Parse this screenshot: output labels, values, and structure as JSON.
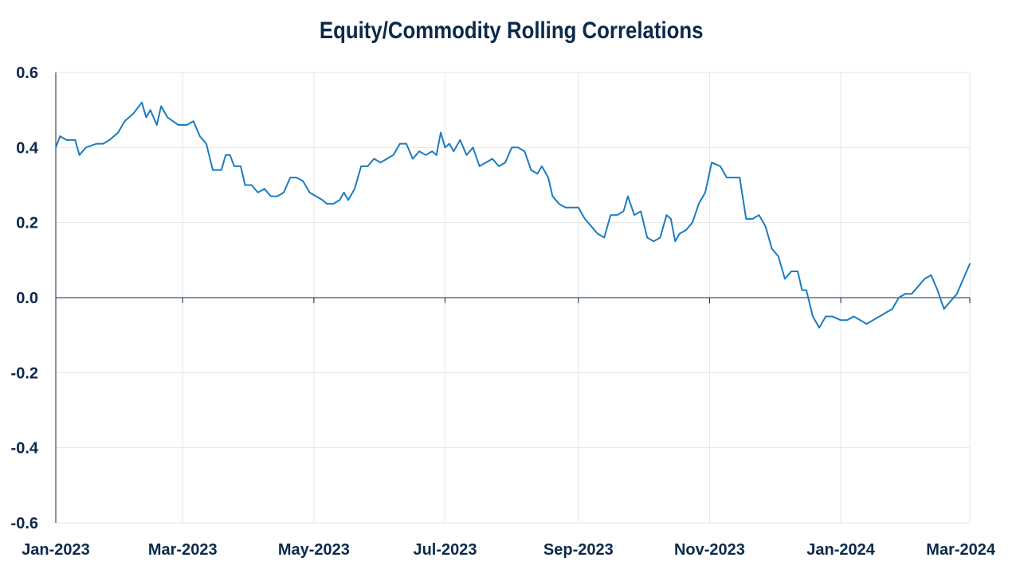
{
  "chart_data": {
    "type": "line",
    "title": "Equity/Commodity Rolling Correlations",
    "xlabel": "",
    "ylabel": "",
    "ylim": [
      -0.6,
      0.6
    ],
    "yticks": [
      0.6,
      0.4,
      0.2,
      0.0,
      -0.2,
      -0.4,
      -0.6
    ],
    "ytick_labels": [
      "0.6",
      "0.4",
      "0.2",
      "0.0",
      "-0.2",
      "-0.4",
      "-0.6"
    ],
    "xlim": [
      "2023-01-01",
      "2024-03-01"
    ],
    "xticks": [
      "2023-01-01",
      "2023-03-01",
      "2023-05-01",
      "2023-07-01",
      "2023-09-01",
      "2023-11-01",
      "2024-01-01",
      "2024-03-01"
    ],
    "xtick_labels": [
      "Jan-2023",
      "Mar-2023",
      "May-2023",
      "Jul-2023",
      "Sep-2023",
      "Nov-2023",
      "Jan-2024",
      "Mar-2024"
    ],
    "grid": true,
    "legend": "none",
    "series": [
      {
        "color": "#1a7cc1",
        "points": [
          [
            "2023-01-01",
            0.4
          ],
          [
            "2023-01-03",
            0.43
          ],
          [
            "2023-01-06",
            0.42
          ],
          [
            "2023-01-10",
            0.42
          ],
          [
            "2023-01-12",
            0.38
          ],
          [
            "2023-01-15",
            0.4
          ],
          [
            "2023-01-20",
            0.41
          ],
          [
            "2023-01-23",
            0.41
          ],
          [
            "2023-01-26",
            0.42
          ],
          [
            "2023-01-30",
            0.44
          ],
          [
            "2023-02-02",
            0.47
          ],
          [
            "2023-02-06",
            0.49
          ],
          [
            "2023-02-10",
            0.52
          ],
          [
            "2023-02-12",
            0.48
          ],
          [
            "2023-02-14",
            0.5
          ],
          [
            "2023-02-17",
            0.46
          ],
          [
            "2023-02-19",
            0.51
          ],
          [
            "2023-02-22",
            0.48
          ],
          [
            "2023-02-27",
            0.46
          ],
          [
            "2023-03-03",
            0.46
          ],
          [
            "2023-03-06",
            0.47
          ],
          [
            "2023-03-09",
            0.43
          ],
          [
            "2023-03-12",
            0.41
          ],
          [
            "2023-03-15",
            0.34
          ],
          [
            "2023-03-19",
            0.34
          ],
          [
            "2023-03-21",
            0.38
          ],
          [
            "2023-03-23",
            0.38
          ],
          [
            "2023-03-25",
            0.35
          ],
          [
            "2023-03-28",
            0.35
          ],
          [
            "2023-03-30",
            0.3
          ],
          [
            "2023-04-02",
            0.3
          ],
          [
            "2023-04-05",
            0.28
          ],
          [
            "2023-04-08",
            0.29
          ],
          [
            "2023-04-11",
            0.27
          ],
          [
            "2023-04-14",
            0.27
          ],
          [
            "2023-04-17",
            0.28
          ],
          [
            "2023-04-20",
            0.32
          ],
          [
            "2023-04-23",
            0.32
          ],
          [
            "2023-04-26",
            0.31
          ],
          [
            "2023-04-29",
            0.28
          ],
          [
            "2023-05-02",
            0.27
          ],
          [
            "2023-05-05",
            0.26
          ],
          [
            "2023-05-07",
            0.25
          ],
          [
            "2023-05-10",
            0.25
          ],
          [
            "2023-05-13",
            0.26
          ],
          [
            "2023-05-15",
            0.28
          ],
          [
            "2023-05-17",
            0.26
          ],
          [
            "2023-05-20",
            0.29
          ],
          [
            "2023-05-23",
            0.35
          ],
          [
            "2023-05-26",
            0.35
          ],
          [
            "2023-05-29",
            0.37
          ],
          [
            "2023-06-01",
            0.36
          ],
          [
            "2023-06-04",
            0.37
          ],
          [
            "2023-06-07",
            0.38
          ],
          [
            "2023-06-10",
            0.41
          ],
          [
            "2023-06-13",
            0.41
          ],
          [
            "2023-06-16",
            0.37
          ],
          [
            "2023-06-19",
            0.39
          ],
          [
            "2023-06-22",
            0.38
          ],
          [
            "2023-06-25",
            0.39
          ],
          [
            "2023-06-27",
            0.38
          ],
          [
            "2023-06-29",
            0.44
          ],
          [
            "2023-07-01",
            0.4
          ],
          [
            "2023-07-03",
            0.41
          ],
          [
            "2023-07-05",
            0.39
          ],
          [
            "2023-07-08",
            0.42
          ],
          [
            "2023-07-11",
            0.38
          ],
          [
            "2023-07-14",
            0.4
          ],
          [
            "2023-07-17",
            0.35
          ],
          [
            "2023-07-20",
            0.36
          ],
          [
            "2023-07-23",
            0.37
          ],
          [
            "2023-07-26",
            0.35
          ],
          [
            "2023-07-29",
            0.36
          ],
          [
            "2023-08-01",
            0.4
          ],
          [
            "2023-08-04",
            0.4
          ],
          [
            "2023-08-07",
            0.39
          ],
          [
            "2023-08-10",
            0.34
          ],
          [
            "2023-08-13",
            0.33
          ],
          [
            "2023-08-15",
            0.35
          ],
          [
            "2023-08-18",
            0.32
          ],
          [
            "2023-08-20",
            0.27
          ],
          [
            "2023-08-23",
            0.25
          ],
          [
            "2023-08-26",
            0.24
          ],
          [
            "2023-08-29",
            0.24
          ],
          [
            "2023-09-01",
            0.24
          ],
          [
            "2023-09-04",
            0.21
          ],
          [
            "2023-09-07",
            0.19
          ],
          [
            "2023-09-10",
            0.17
          ],
          [
            "2023-09-13",
            0.16
          ],
          [
            "2023-09-16",
            0.22
          ],
          [
            "2023-09-19",
            0.22
          ],
          [
            "2023-09-22",
            0.23
          ],
          [
            "2023-09-24",
            0.27
          ],
          [
            "2023-09-27",
            0.22
          ],
          [
            "2023-09-30",
            0.23
          ],
          [
            "2023-10-03",
            0.16
          ],
          [
            "2023-10-06",
            0.15
          ],
          [
            "2023-10-09",
            0.16
          ],
          [
            "2023-10-12",
            0.22
          ],
          [
            "2023-10-14",
            0.21
          ],
          [
            "2023-10-16",
            0.15
          ],
          [
            "2023-10-18",
            0.17
          ],
          [
            "2023-10-21",
            0.18
          ],
          [
            "2023-10-24",
            0.2
          ],
          [
            "2023-10-27",
            0.25
          ],
          [
            "2023-10-30",
            0.28
          ],
          [
            "2023-11-02",
            0.36
          ],
          [
            "2023-11-06",
            0.35
          ],
          [
            "2023-11-09",
            0.32
          ],
          [
            "2023-11-12",
            0.32
          ],
          [
            "2023-11-15",
            0.32
          ],
          [
            "2023-11-18",
            0.21
          ],
          [
            "2023-11-21",
            0.21
          ],
          [
            "2023-11-24",
            0.22
          ],
          [
            "2023-11-27",
            0.19
          ],
          [
            "2023-11-30",
            0.13
          ],
          [
            "2023-12-03",
            0.11
          ],
          [
            "2023-12-06",
            0.05
          ],
          [
            "2023-12-09",
            0.07
          ],
          [
            "2023-12-12",
            0.07
          ],
          [
            "2023-12-14",
            0.02
          ],
          [
            "2023-12-16",
            0.02
          ],
          [
            "2023-12-19",
            -0.05
          ],
          [
            "2023-12-22",
            -0.08
          ],
          [
            "2023-12-25",
            -0.05
          ],
          [
            "2023-12-28",
            -0.05
          ],
          [
            "2024-01-01",
            -0.06
          ],
          [
            "2024-01-04",
            -0.06
          ],
          [
            "2024-01-07",
            -0.05
          ],
          [
            "2024-01-10",
            -0.06
          ],
          [
            "2024-01-13",
            -0.07
          ],
          [
            "2024-01-16",
            -0.06
          ],
          [
            "2024-01-19",
            -0.05
          ],
          [
            "2024-01-22",
            -0.04
          ],
          [
            "2024-01-25",
            -0.03
          ],
          [
            "2024-01-28",
            0.0
          ],
          [
            "2024-01-31",
            0.01
          ],
          [
            "2024-02-03",
            0.01
          ],
          [
            "2024-02-06",
            0.03
          ],
          [
            "2024-02-09",
            0.05
          ],
          [
            "2024-02-12",
            0.06
          ],
          [
            "2024-02-15",
            0.02
          ],
          [
            "2024-02-18",
            -0.03
          ],
          [
            "2024-02-21",
            -0.01
          ],
          [
            "2024-02-24",
            0.01
          ],
          [
            "2024-02-27",
            0.05
          ],
          [
            "2024-03-01",
            0.09
          ]
        ]
      }
    ]
  }
}
